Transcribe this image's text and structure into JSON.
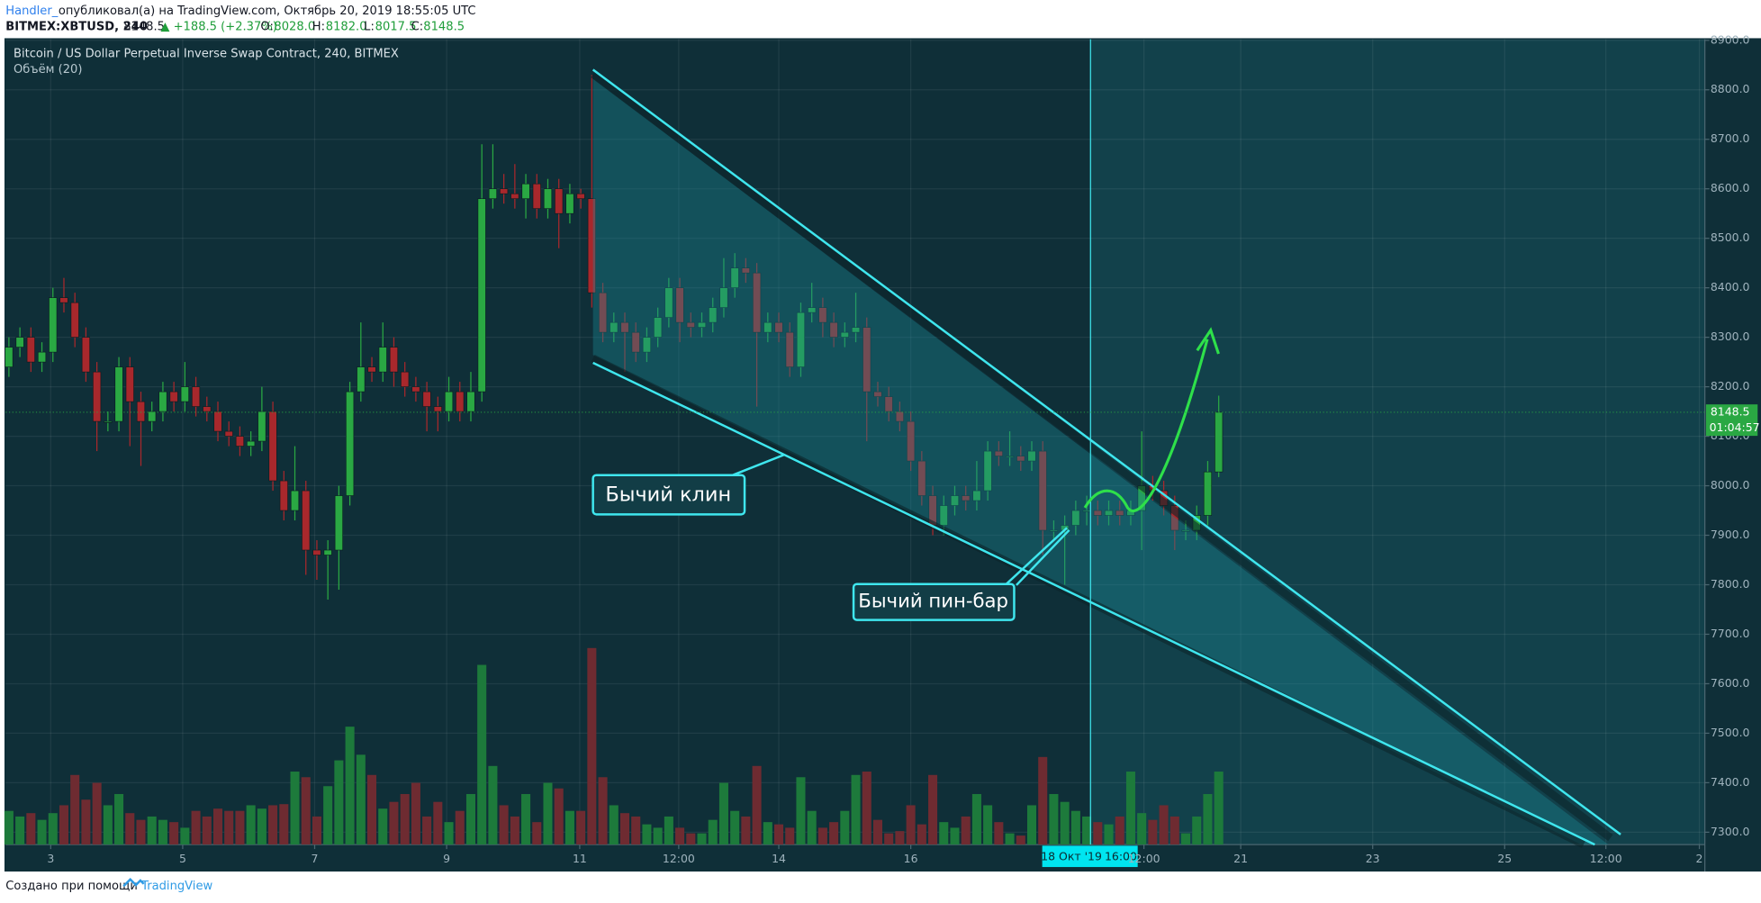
{
  "header": {
    "author": "Handler_",
    "published": "опубликовал(а) на TradingView.com, Октябрь 20, 2019 18:55:05 UTC",
    "symbol": "BITMEX:XBTUSD, 240",
    "last": "8148.5",
    "change": "▲ +188.5 (+2.37%)",
    "o_label": "O:",
    "o_value": "8028.0",
    "h_label": "H:",
    "h_value": "8182.0",
    "l_label": "L:",
    "l_value": "8017.5",
    "c_label": "C:",
    "c_value": "8148.5"
  },
  "footer": {
    "text": "Создано при помощи",
    "brand": "TradingView"
  },
  "chart_data": {
    "type": "candlestick",
    "title": "Bitcoin / US Dollar Perpetual Inverse Swap Contract, 240, BITMEX",
    "subtitle": "Объём (20)",
    "open": [
      8240,
      8280,
      8300,
      8250,
      8270,
      8380,
      8370,
      8300,
      8230,
      8130,
      8130,
      8240,
      8170,
      8130,
      8150,
      8190,
      8170,
      8200,
      8160,
      8150,
      8110,
      8100,
      8080,
      8090,
      8150,
      8010,
      7950,
      7990,
      7870,
      7860,
      7870,
      7980,
      8190,
      8240,
      8230,
      8280,
      8230,
      8200,
      8190,
      8160,
      8150,
      8190,
      8150,
      8190,
      8580,
      8600,
      8590,
      8580,
      8610,
      8560,
      8600,
      8550,
      8590,
      8580,
      8390,
      8310,
      8330,
      8310,
      8270,
      8300,
      8340,
      8400,
      8330,
      8320,
      8330,
      8360,
      8400,
      8440,
      8430,
      8310,
      8330,
      8310,
      8240,
      8350,
      8360,
      8330,
      8300,
      8310,
      8320,
      8190,
      8180,
      8150,
      8130,
      8050,
      7980,
      7920,
      7960,
      7980,
      7970,
      7990,
      8070,
      8060,
      8060,
      8050,
      8070,
      7910,
      7910,
      7920,
      7950,
      7950,
      7940,
      7950,
      7940,
      7950,
      8000,
      7990,
      7960,
      7910,
      7910,
      7940,
      8028
    ],
    "high": [
      8300,
      8320,
      8320,
      8290,
      8400,
      8420,
      8390,
      8320,
      8250,
      8150,
      8260,
      8260,
      8190,
      8170,
      8210,
      8210,
      8250,
      8220,
      8180,
      8170,
      8130,
      8120,
      8110,
      8200,
      8170,
      8030,
      8080,
      8010,
      7890,
      7890,
      8000,
      8210,
      8330,
      8260,
      8330,
      8300,
      8250,
      8220,
      8210,
      8180,
      8220,
      8210,
      8230,
      8690,
      8690,
      8630,
      8650,
      8630,
      8630,
      8620,
      8620,
      8610,
      8600,
      8830,
      8410,
      8350,
      8350,
      8330,
      8320,
      8360,
      8420,
      8420,
      8350,
      8350,
      8380,
      8460,
      8470,
      8460,
      8450,
      8350,
      8350,
      8330,
      8370,
      8410,
      8380,
      8350,
      8330,
      8390,
      8340,
      8210,
      8200,
      8170,
      8150,
      8070,
      8000,
      7980,
      8000,
      8000,
      8050,
      8090,
      8090,
      8110,
      8080,
      8090,
      8090,
      7930,
      7940,
      7970,
      7980,
      7970,
      7970,
      7970,
      7970,
      8110,
      8020,
      8010,
      7980,
      7930,
      7960,
      8050,
      8182
    ],
    "low": [
      8220,
      8260,
      8230,
      8230,
      8250,
      8350,
      8280,
      8210,
      8070,
      8110,
      8110,
      8080,
      8040,
      8110,
      8130,
      8150,
      8150,
      8140,
      8130,
      8090,
      8080,
      8060,
      8060,
      8070,
      7990,
      7930,
      7930,
      7820,
      7810,
      7770,
      7790,
      7960,
      8170,
      8210,
      8210,
      8200,
      8180,
      8170,
      8110,
      8110,
      8130,
      8130,
      8130,
      8170,
      8560,
      8570,
      8560,
      8540,
      8540,
      8540,
      8480,
      8530,
      8560,
      8360,
      8290,
      8290,
      8230,
      8250,
      8250,
      8280,
      8320,
      8290,
      8300,
      8300,
      8310,
      8340,
      8380,
      8410,
      8160,
      8290,
      8290,
      8220,
      8220,
      8330,
      8300,
      8280,
      8280,
      8290,
      8090,
      8160,
      8130,
      8110,
      8030,
      7960,
      7900,
      7900,
      7940,
      7950,
      7950,
      7970,
      8040,
      8040,
      8030,
      8030,
      7860,
      7890,
      7800,
      7900,
      7920,
      7920,
      7920,
      7920,
      7920,
      7870,
      7970,
      7940,
      7870,
      7890,
      7890,
      7920,
      8017.5
    ],
    "close": [
      8280,
      8300,
      8250,
      8270,
      8380,
      8370,
      8300,
      8230,
      8130,
      8130,
      8240,
      8170,
      8130,
      8150,
      8190,
      8170,
      8200,
      8160,
      8150,
      8110,
      8100,
      8080,
      8090,
      8150,
      8010,
      7950,
      7990,
      7870,
      7860,
      7870,
      7980,
      8190,
      8240,
      8230,
      8280,
      8230,
      8200,
      8190,
      8160,
      8150,
      8190,
      8150,
      8190,
      8580,
      8600,
      8590,
      8580,
      8610,
      8560,
      8600,
      8550,
      8590,
      8580,
      8390,
      8310,
      8330,
      8310,
      8270,
      8300,
      8340,
      8400,
      8330,
      8320,
      8330,
      8360,
      8400,
      8440,
      8430,
      8310,
      8330,
      8310,
      8240,
      8350,
      8360,
      8330,
      8300,
      8310,
      8320,
      8190,
      8180,
      8150,
      8130,
      8050,
      7980,
      7920,
      7960,
      7980,
      7970,
      7990,
      8070,
      8060,
      8060,
      8050,
      8070,
      7910,
      7910,
      7920,
      7950,
      7950,
      7940,
      7950,
      7940,
      7950,
      8000,
      7990,
      7960,
      7910,
      7910,
      7940,
      8028,
      8148.5
    ],
    "volume": [
      30,
      25,
      28,
      22,
      28,
      35,
      62,
      40,
      55,
      35,
      45,
      28,
      22,
      25,
      22,
      20,
      15,
      30,
      25,
      32,
      30,
      30,
      35,
      32,
      35,
      36,
      65,
      60,
      25,
      52,
      75,
      105,
      80,
      62,
      32,
      38,
      45,
      55,
      25,
      38,
      20,
      30,
      45,
      160,
      70,
      35,
      25,
      45,
      20,
      55,
      50,
      30,
      30,
      175,
      60,
      35,
      28,
      25,
      18,
      15,
      25,
      15,
      10,
      10,
      22,
      55,
      30,
      25,
      70,
      20,
      18,
      15,
      60,
      30,
      15,
      20,
      30,
      62,
      65,
      22,
      10,
      12,
      35,
      18,
      62,
      20,
      15,
      25,
      45,
      35,
      20,
      10,
      8,
      35,
      78,
      45,
      38,
      30,
      25,
      20,
      18,
      25,
      65,
      28,
      22,
      35,
      25,
      10,
      25,
      45,
      65
    ],
    "up_color": "#2aa843",
    "down_color": "#a8282c",
    "volume_up_color": "#1d7a3b",
    "volume_down_color": "#6e2b31",
    "ylim": [
      7275,
      8902
    ],
    "yticks": [
      {
        "value": 7300,
        "label": "7300.0"
      },
      {
        "value": 7400,
        "label": "7400.0"
      },
      {
        "value": 7500,
        "label": "7500.0"
      },
      {
        "value": 7600,
        "label": "7600.0"
      },
      {
        "value": 7700,
        "label": "7700.0"
      },
      {
        "value": 7800,
        "label": "7800.0"
      },
      {
        "value": 7900,
        "label": "7900.0"
      },
      {
        "value": 8000,
        "label": "8000.0"
      },
      {
        "value": 8100,
        "label": "8100.0"
      },
      {
        "value": 8200,
        "label": "8200.0"
      },
      {
        "value": 8300,
        "label": "8300.0"
      },
      {
        "value": 8400,
        "label": "8400.0"
      },
      {
        "value": 8500,
        "label": "8500.0"
      },
      {
        "value": 8600,
        "label": "8600.0"
      },
      {
        "value": 8700,
        "label": "8700.0"
      },
      {
        "value": 8800,
        "label": "8800.0"
      },
      {
        "value": 8900,
        "label": "8900.0"
      }
    ],
    "xlim": [
      -0.3,
      154.2
    ],
    "xticks": [
      {
        "value": 3.8,
        "label": "3"
      },
      {
        "value": 15.8,
        "label": "5"
      },
      {
        "value": 27.8,
        "label": "7"
      },
      {
        "value": 39.8,
        "label": "9"
      },
      {
        "value": 51.9,
        "label": "11"
      },
      {
        "value": 60.9,
        "label": "12:00"
      },
      {
        "value": 70,
        "label": "14"
      },
      {
        "value": 82,
        "label": "16"
      },
      {
        "value": 103.2,
        "label": "12:00"
      },
      {
        "value": 112,
        "label": "21"
      },
      {
        "value": 124,
        "label": "23"
      },
      {
        "value": 136,
        "label": "25"
      },
      {
        "value": 145.2,
        "label": "12:00"
      },
      {
        "value": 153.7,
        "label": "2"
      }
    ],
    "grid": true,
    "crosshair": {
      "date": "18 Окт '19",
      "time": "16:00"
    },
    "last_price_label": "8148.5",
    "countdown": "01:04:57",
    "annotations": [
      "Бычий клин",
      "Бычий пин-бар"
    ]
  }
}
